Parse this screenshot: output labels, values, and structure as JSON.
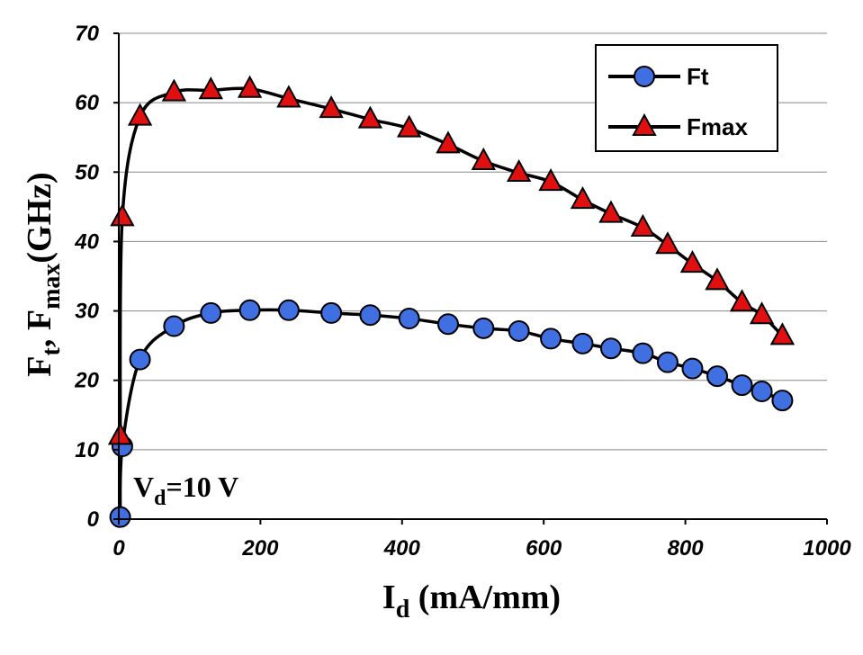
{
  "chart_data": {
    "type": "line",
    "xlabel": {
      "main": "I",
      "sub": "d",
      "rest": " (mA/mm)"
    },
    "ylabel": {
      "p1": "F",
      "s1": "t",
      "p2": ", F",
      "s2": "max",
      "p3": "(GHz)"
    },
    "xlim": [
      0,
      1000
    ],
    "ylim": [
      0,
      70
    ],
    "x_ticks": [
      0,
      200,
      400,
      600,
      800,
      1000
    ],
    "y_ticks": [
      0,
      10,
      20,
      30,
      40,
      50,
      60,
      70
    ],
    "grid": "horizontal",
    "legend_position": "top-right",
    "annotation": {
      "main": "V",
      "sub": "d",
      "rest": "=10 V"
    },
    "series": [
      {
        "name": "Ft",
        "marker": "circle",
        "color": "#3f6fe0",
        "x": [
          2,
          5,
          30,
          78,
          130,
          185,
          240,
          300,
          355,
          410,
          465,
          515,
          565,
          610,
          655,
          695,
          740,
          775,
          810,
          845,
          880,
          908,
          937
        ],
        "y": [
          0.3,
          10.5,
          23,
          27.8,
          29.7,
          30.1,
          30.1,
          29.7,
          29.4,
          28.9,
          28.1,
          27.5,
          27.1,
          26.0,
          25.3,
          24.6,
          23.9,
          22.6,
          21.7,
          20.6,
          19.3,
          18.4,
          17.1
        ]
      },
      {
        "name": "Fmax",
        "marker": "triangle",
        "color": "#e01010",
        "x": [
          2,
          5,
          30,
          78,
          130,
          185,
          240,
          300,
          355,
          410,
          465,
          515,
          565,
          610,
          655,
          695,
          740,
          775,
          810,
          845,
          880,
          908,
          937
        ],
        "y": [
          12,
          43.5,
          58,
          61.5,
          61.8,
          62.0,
          60.6,
          59.1,
          57.6,
          56.3,
          54.0,
          51.6,
          49.9,
          48.6,
          46.0,
          44.0,
          42.0,
          39.5,
          36.8,
          34.3,
          31.2,
          29.4,
          26.4
        ]
      }
    ]
  }
}
